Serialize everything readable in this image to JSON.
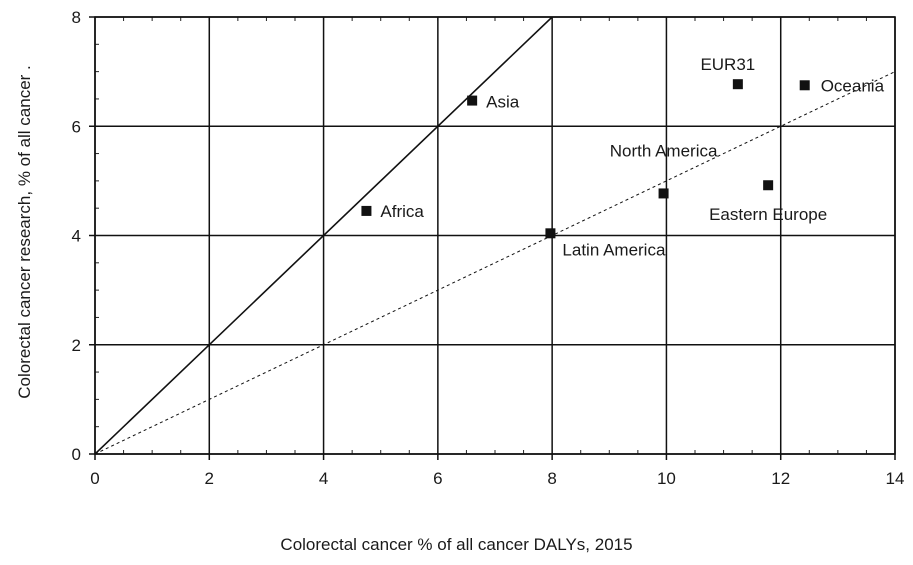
{
  "chart_data": {
    "type": "scatter",
    "xlabel": "Colorectal cancer % of all cancer DALYs, 2015",
    "ylabel": "Colorectal cancer research, % of all cancer .",
    "xlim": [
      0,
      14
    ],
    "ylim": [
      0,
      8
    ],
    "xticks": [
      0,
      2,
      4,
      6,
      8,
      10,
      12,
      14
    ],
    "yticks": [
      0,
      2,
      4,
      6,
      8
    ],
    "grid": true,
    "points": [
      {
        "label": "Africa",
        "x": 4.75,
        "y": 4.45
      },
      {
        "label": "Asia",
        "x": 6.6,
        "y": 6.47
      },
      {
        "label": "Latin America",
        "x": 7.97,
        "y": 4.04
      },
      {
        "label": "North America",
        "x": 9.95,
        "y": 4.77
      },
      {
        "label": "EUR31",
        "x": 11.25,
        "y": 6.77
      },
      {
        "label": "Eastern Europe",
        "x": 11.78,
        "y": 4.92
      },
      {
        "label": "Oceania",
        "x": 12.42,
        "y": 6.75
      }
    ],
    "reference_lines": [
      {
        "style": "solid",
        "slope": 1.0
      },
      {
        "style": "dashed",
        "slope": 0.5
      }
    ]
  }
}
